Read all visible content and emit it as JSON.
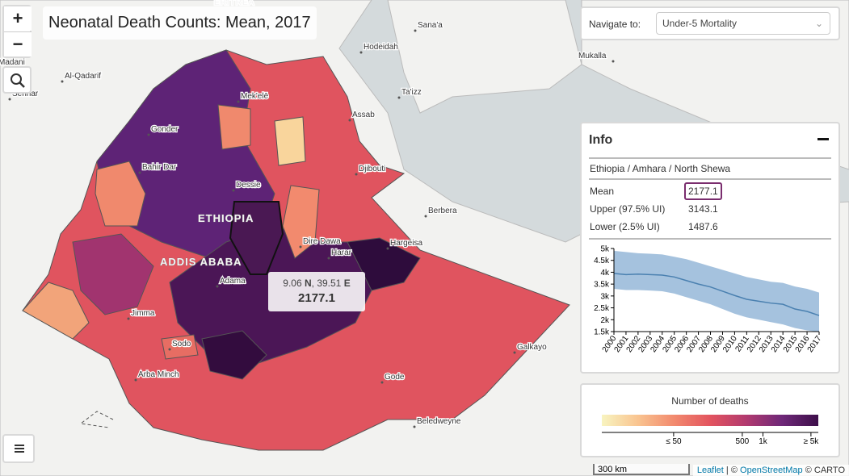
{
  "title": "Neonatal Death Counts: Mean, 2017",
  "zoom": {
    "in": "+",
    "out": "−"
  },
  "navigate": {
    "label": "Navigate to:",
    "selected": "Under-5 Mortality"
  },
  "map_labels": [
    "ERITREA",
    "Sana'a",
    "Hodeidah",
    "Mek'elē",
    "Al-Qadarif",
    "Madani",
    "Sennar",
    "Gonder",
    "Bahir Dar",
    "Dessie",
    "Assab",
    "Ta'izz",
    "Mukalla",
    "Djibouti",
    "Berbera",
    "Hargeisa",
    "ETHIOPIA",
    "Dire Dawa",
    "Harar",
    "ADDIS ABABA",
    "Adama",
    "Jimma",
    "Sodo",
    "Arba Minch",
    "Galkayo",
    "Gode",
    "Beledweyne"
  ],
  "tooltip": {
    "lat": "9.06",
    "lat_hemi": "N",
    "separator": ",",
    "lon": "39.51",
    "lon_hemi": "E",
    "value": "2177.1"
  },
  "info": {
    "heading": "Info",
    "path": "Ethiopia / Amhara / North Shewa",
    "rows": [
      [
        "Mean",
        "2177.1"
      ],
      [
        "Upper (97.5% UI)",
        "3143.1"
      ],
      [
        "Lower (2.5% UI)",
        "1487.6"
      ]
    ]
  },
  "chart_data": {
    "type": "line",
    "x": [
      2000,
      2001,
      2002,
      2003,
      2004,
      2005,
      2006,
      2007,
      2008,
      2009,
      2010,
      2011,
      2012,
      2013,
      2014,
      2015,
      2016,
      2017
    ],
    "series": [
      {
        "name": "Mean",
        "color": "#4a80b0",
        "values": [
          3950,
          3900,
          3920,
          3900,
          3880,
          3800,
          3650,
          3500,
          3380,
          3200,
          3020,
          2860,
          2780,
          2700,
          2650,
          2450,
          2350,
          2177.1
        ],
        "upper": [
          4900,
          4850,
          4800,
          4780,
          4750,
          4650,
          4550,
          4400,
          4250,
          4100,
          3950,
          3800,
          3700,
          3600,
          3550,
          3400,
          3300,
          3143.1
        ],
        "lower": [
          3300,
          3250,
          3250,
          3230,
          3200,
          3100,
          2950,
          2800,
          2650,
          2450,
          2250,
          2100,
          2000,
          1900,
          1800,
          1650,
          1550,
          1487.6
        ],
        "band_color": "#8fb3d6"
      }
    ],
    "xlim": [
      2000,
      2017
    ],
    "xticks": [
      2000,
      2001,
      2002,
      2003,
      2004,
      2005,
      2006,
      2007,
      2008,
      2009,
      2010,
      2011,
      2012,
      2013,
      2014,
      2015,
      2016,
      2017
    ],
    "ylim": [
      1500,
      5000
    ],
    "yticks": [
      {
        "value": 1500,
        "label": "1.5k"
      },
      {
        "value": 2000,
        "label": "2k"
      },
      {
        "value": 2500,
        "label": "2.5k"
      },
      {
        "value": 3000,
        "label": "3k"
      },
      {
        "value": 3500,
        "label": "3.5k"
      },
      {
        "value": 4000,
        "label": "4k"
      },
      {
        "value": 4500,
        "label": "4.5k"
      },
      {
        "value": 5000,
        "label": "5k"
      }
    ]
  },
  "legend": {
    "title": "Number of deaths",
    "scale": "log",
    "lim": [
      4.5,
      6400
    ],
    "colors": [
      "#f8f4c0",
      "#f9c490",
      "#f28a6e",
      "#e3545f",
      "#b23a6f",
      "#6e2878",
      "#3d0f4a"
    ],
    "ticks": [
      {
        "value": 50,
        "label": "≤ 50"
      },
      {
        "value": 500,
        "label": "500"
      },
      {
        "value": 1000,
        "label": "1k"
      },
      {
        "value": 5000,
        "label": "≥ 5k"
      }
    ]
  },
  "scale_bar": "300 km",
  "attribution": [
    "Leaflet",
    "| ©",
    "OpenStreetMap",
    "© CARTO"
  ]
}
